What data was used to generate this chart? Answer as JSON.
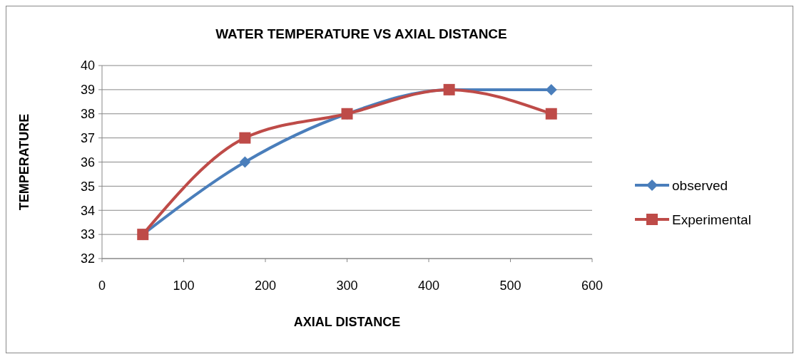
{
  "chart_data": {
    "type": "line",
    "title": "WATER TEMPERATURE VS AXIAL DISTANCE",
    "xlabel": "AXIAL DISTANCE",
    "ylabel": "TEMPERATURE",
    "x": [
      50,
      175,
      300,
      425,
      550
    ],
    "series": [
      {
        "name": "observed",
        "color": "#4a7ebb",
        "values": [
          33,
          36,
          38,
          39,
          39
        ],
        "marker": "diamond"
      },
      {
        "name": "Experimental",
        "color": "#be4b48",
        "values": [
          33,
          37,
          38,
          39,
          38
        ],
        "marker": "square"
      }
    ],
    "xlim": [
      0,
      600
    ],
    "xticks": [
      0,
      100,
      200,
      300,
      400,
      500,
      600
    ],
    "ylim": [
      32,
      40
    ],
    "yticks": [
      32,
      33,
      34,
      35,
      36,
      37,
      38,
      39,
      40
    ],
    "grid": "y",
    "legend": "right",
    "line_style": "solid"
  }
}
